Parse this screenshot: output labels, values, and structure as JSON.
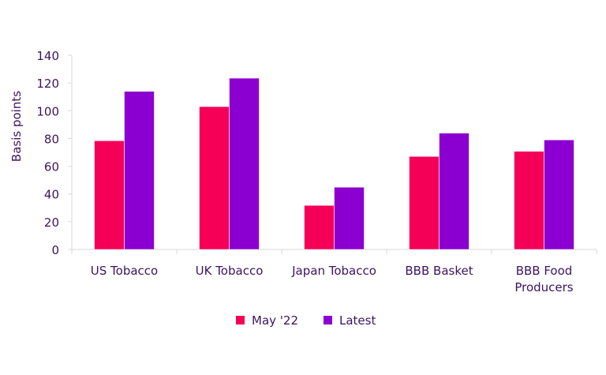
{
  "chart_data": {
    "type": "bar",
    "title": "",
    "xlabel": "",
    "ylabel": "Basis points",
    "ylim": [
      0,
      140
    ],
    "yticks": [
      0,
      20,
      40,
      60,
      80,
      100,
      120,
      140
    ],
    "grid": false,
    "legend_position": "bottom",
    "categories": [
      [
        "US Tobacco"
      ],
      [
        "UK Tobacco"
      ],
      [
        "Japan Tobacco"
      ],
      [
        "BBB Basket"
      ],
      [
        "BBB Food",
        "Producers"
      ]
    ],
    "series": [
      {
        "name": "May '22",
        "color": "#f50057",
        "values": [
          78.4,
          103,
          31.8,
          67.1,
          70.8
        ]
      },
      {
        "name": "Latest",
        "color": "#8b00d0",
        "values": [
          114,
          123.5,
          44.9,
          83.9,
          79
        ]
      }
    ]
  }
}
